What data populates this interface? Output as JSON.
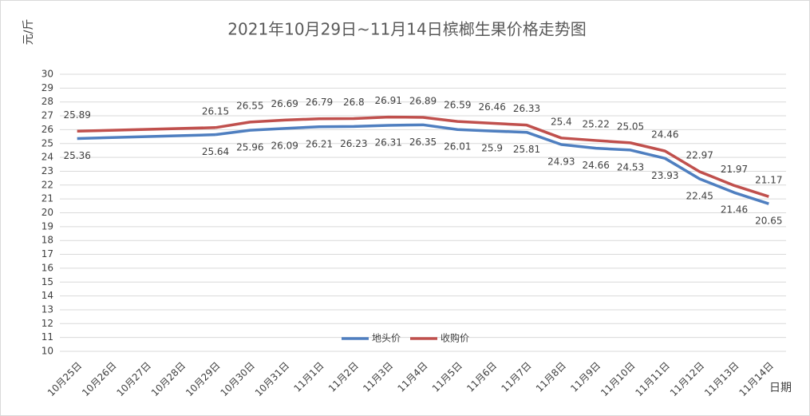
{
  "chart_data": {
    "type": "line",
    "title": "2021年10月29日~11月14日槟榔生果价格走势图",
    "y_label": "元/斤",
    "x_label": "日期",
    "categories": [
      "10月25日",
      "10月26日",
      "10月27日",
      "10月28日",
      "10月29日",
      "10月30日",
      "10月31日",
      "11月1日",
      "11月2日",
      "11月3日",
      "11月4日",
      "11月5日",
      "11月6日",
      "11月7日",
      "11月8日",
      "11月9日",
      "11月10日",
      "11月11日",
      "11月12日",
      "11月13日",
      "11月14日"
    ],
    "series": [
      {
        "name": "地头价",
        "color": "#4f7fc0",
        "values": [
          25.36,
          null,
          null,
          null,
          25.64,
          25.96,
          26.09,
          26.21,
          26.23,
          26.31,
          26.35,
          26.01,
          25.9,
          25.81,
          24.93,
          24.66,
          24.53,
          23.93,
          22.45,
          21.46,
          20.65
        ]
      },
      {
        "name": "收购价",
        "color": "#c0504d",
        "values": [
          25.89,
          null,
          null,
          null,
          26.15,
          26.55,
          26.69,
          26.79,
          26.8,
          26.91,
          26.89,
          26.59,
          26.46,
          26.33,
          25.4,
          25.22,
          25.05,
          24.46,
          22.97,
          21.97,
          21.17
        ]
      }
    ],
    "ylim": [
      10,
      30
    ],
    "yticks": [
      10,
      11,
      12,
      13,
      14,
      15,
      16,
      17,
      18,
      19,
      20,
      21,
      22,
      23,
      24,
      25,
      26,
      27,
      28,
      29,
      30
    ],
    "grid": true,
    "legend": "bottom"
  }
}
